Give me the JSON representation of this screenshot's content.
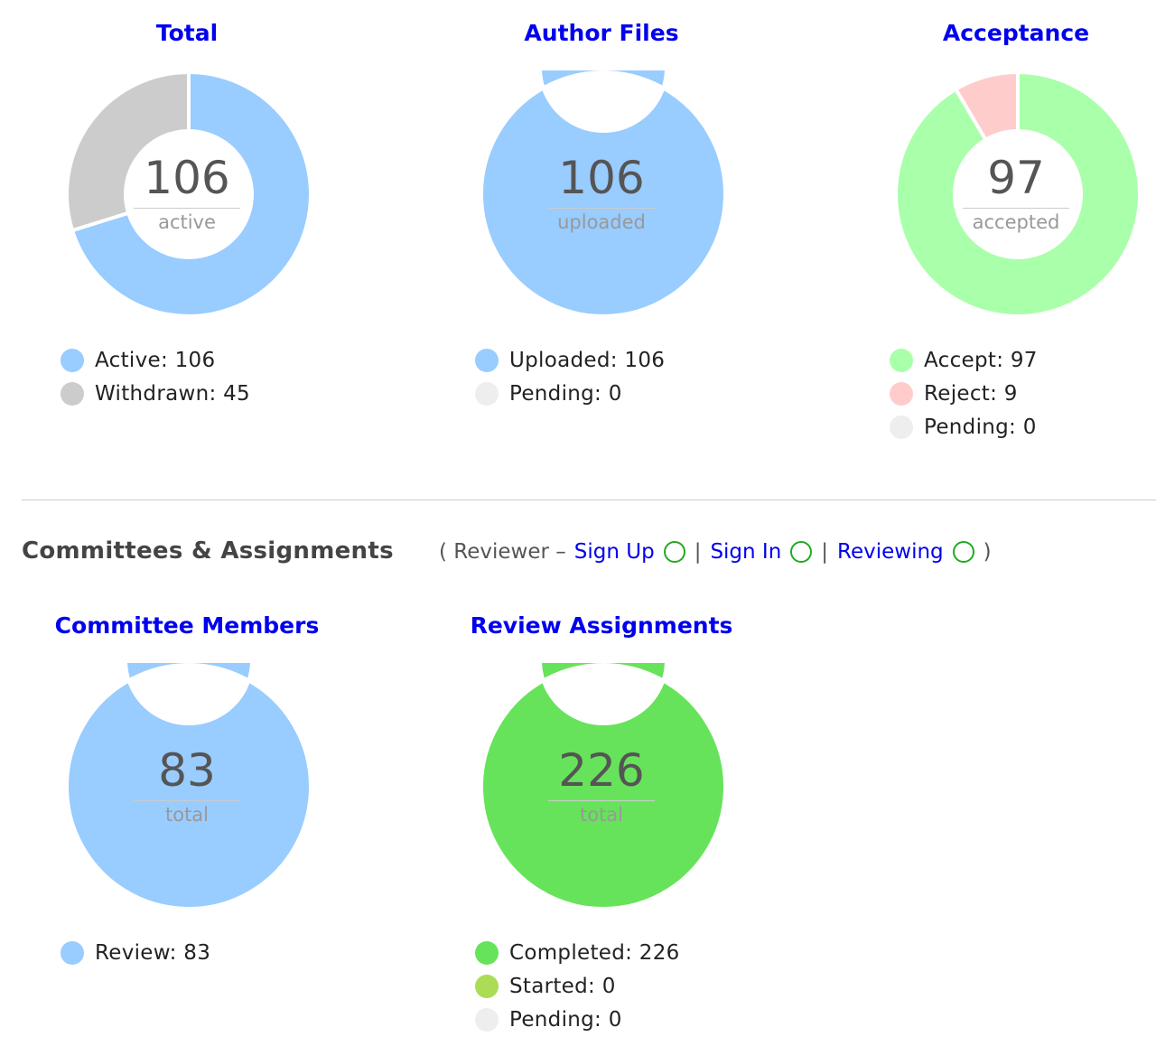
{
  "chart_data": [
    {
      "type": "pie",
      "title": "Total",
      "center_value": "106",
      "center_label": "active",
      "slices": [
        {
          "label": "Active",
          "legend": "Active: 106",
          "value": 106,
          "color": "#99ccff"
        },
        {
          "label": "Withdrawn",
          "legend": "Withdrawn: 45",
          "value": 45,
          "color": "#cccccc"
        }
      ]
    },
    {
      "type": "pie",
      "title": "Author Files",
      "center_value": "106",
      "center_label": "uploaded",
      "slices": [
        {
          "label": "Uploaded",
          "legend": "Uploaded: 106",
          "value": 106,
          "color": "#99ccff"
        },
        {
          "label": "Pending",
          "legend": "Pending: 0",
          "value": 0,
          "color": "#eeeeee"
        }
      ]
    },
    {
      "type": "pie",
      "title": "Acceptance",
      "center_value": "97",
      "center_label": "accepted",
      "slices": [
        {
          "label": "Accept",
          "legend": "Accept: 97",
          "value": 97,
          "color": "#aaffaa"
        },
        {
          "label": "Reject",
          "legend": "Reject: 9",
          "value": 9,
          "color": "#ffcccc"
        },
        {
          "label": "Pending",
          "legend": "Pending: 0",
          "value": 0,
          "color": "#eeeeee"
        }
      ]
    },
    {
      "type": "pie",
      "title": "Committee Members",
      "center_value": "83",
      "center_label": "total",
      "slices": [
        {
          "label": "Review",
          "legend": "Review: 83",
          "value": 83,
          "color": "#99ccff"
        }
      ]
    },
    {
      "type": "pie",
      "title": "Review Assignments",
      "center_value": "226",
      "center_label": "total",
      "slices": [
        {
          "label": "Completed",
          "legend": "Completed: 226",
          "value": 226,
          "color": "#66e35a"
        },
        {
          "label": "Started",
          "legend": "Started: 0",
          "value": 0,
          "color": "#aadd55"
        },
        {
          "label": "Pending",
          "legend": "Pending: 0",
          "value": 0,
          "color": "#eeeeee"
        }
      ]
    }
  ],
  "section": {
    "title": "Committees & Assignments",
    "reviewer_prefix": "( Reviewer –",
    "sign_up": "Sign Up",
    "sign_in": "Sign In",
    "reviewing": "Reviewing",
    "separator": "|",
    "suffix": ")",
    "status_color": "#22aa22"
  }
}
